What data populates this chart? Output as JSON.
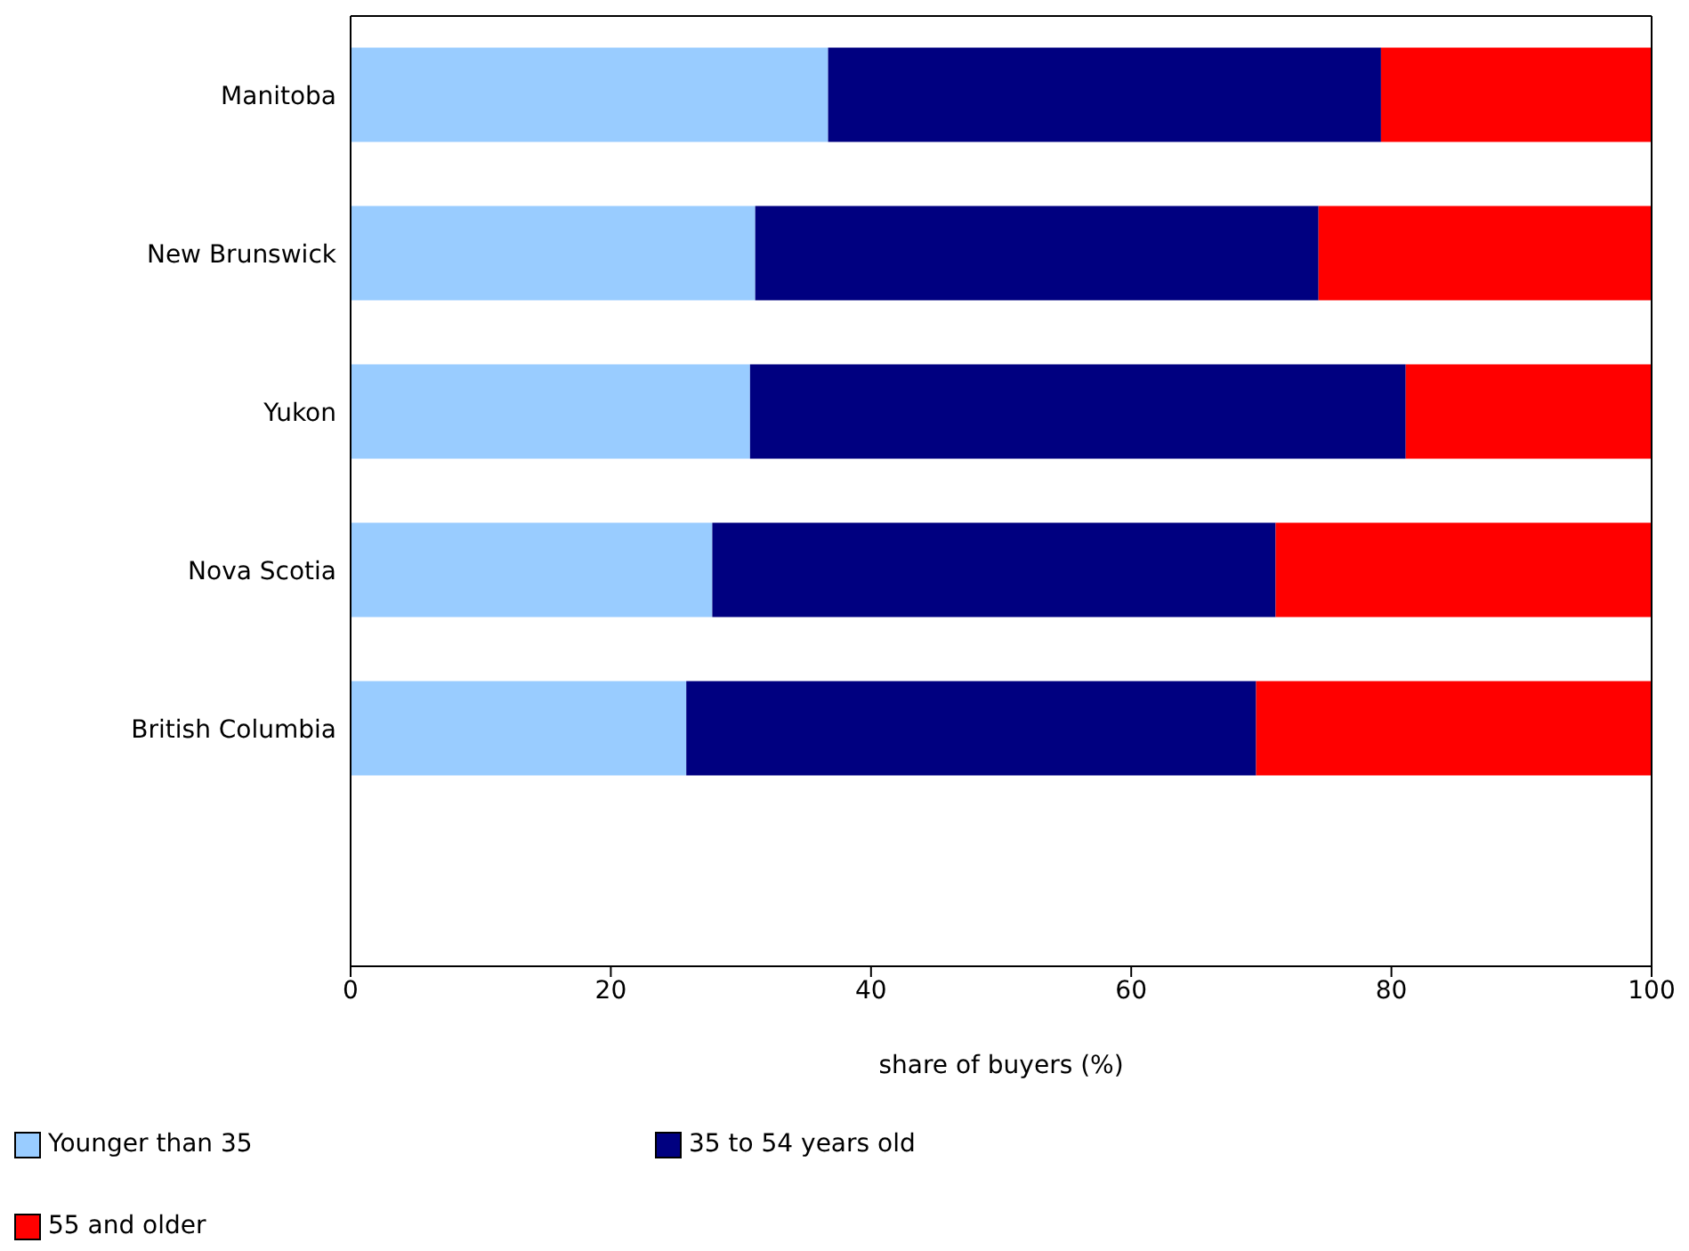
{
  "chart_data": {
    "type": "bar",
    "orientation": "horizontal",
    "stacked": true,
    "xlabel": "share of buyers (%)",
    "categories": [
      "Manitoba",
      "New Brunswick",
      "Yukon",
      "Nova Scotia",
      "British Columbia"
    ],
    "series": [
      {
        "name": "Younger than 35",
        "color": "#99ccff",
        "values": [
          36.7,
          31.1,
          30.7,
          27.8,
          25.8
        ]
      },
      {
        "name": "35 to 54 years old",
        "color": "#000080",
        "values": [
          42.5,
          43.3,
          50.4,
          43.3,
          43.8
        ]
      },
      {
        "name": "55 and older",
        "color": "#ff0000",
        "values": [
          20.8,
          25.6,
          18.9,
          28.9,
          30.4
        ]
      }
    ],
    "xlim": [
      0,
      100
    ],
    "xticks": [
      0,
      20,
      40,
      60,
      80,
      100
    ],
    "legend": "bottom"
  }
}
